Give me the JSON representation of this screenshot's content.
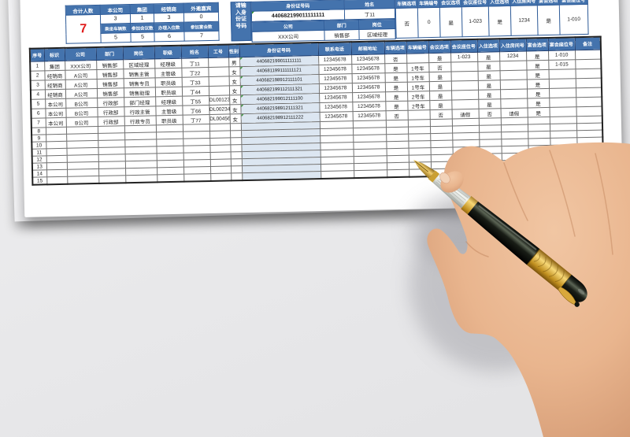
{
  "summary": {
    "row1_headers": [
      "合计人数",
      "本公司",
      "集团",
      "经销商",
      "外邀嘉宾"
    ],
    "row1_values": [
      "3",
      "1",
      "3",
      "0"
    ],
    "total": "7",
    "row2_headers": [
      "乘坐车辆数",
      "参加会议数",
      "办理入住数",
      "参加宴会数"
    ],
    "row2_values": [
      "5",
      "5",
      "6",
      "7"
    ]
  },
  "lookup": {
    "side_label": "请输入身份证号码",
    "id_header": "身份证号码",
    "id_value": "440682199011111111",
    "name_header": "姓名",
    "name_value": "丁11",
    "company_header": "公司",
    "company_value": "XXX公司",
    "dept_header": "部门",
    "dept_value": "销售部",
    "post_header": "岗位",
    "post_value": "区域经理",
    "result_columns": [
      {
        "header": "车辆选项",
        "value": "否"
      },
      {
        "header": "车辆编号",
        "value": "0"
      },
      {
        "header": "会议选项",
        "value": "是"
      },
      {
        "header": "会议座位号",
        "value": "1-023"
      },
      {
        "header": "入住选项",
        "value": "是"
      },
      {
        "header": "入住房间号",
        "value": "1234"
      },
      {
        "header": "宴会选项",
        "value": "是"
      },
      {
        "header": "宴会座位号",
        "value": "1-010"
      }
    ]
  },
  "main_table": {
    "columns": [
      "序号",
      "标识",
      "公司",
      "部门",
      "岗位",
      "职级",
      "姓名",
      "工号",
      "性别",
      "身份证号码",
      "联系电话",
      "邮箱地址",
      "车辆选项",
      "车辆编号",
      "会议选项",
      "会议座位号",
      "入住选项",
      "入住房间号",
      "宴会选项",
      "宴会座位号",
      "备注"
    ],
    "rows": [
      [
        "1",
        "集团",
        "XXX公司",
        "销售部",
        "区域经理",
        "经理级",
        "丁11",
        "",
        "男",
        "440682199011111111",
        "12345678",
        "12345678",
        "否",
        "",
        "是",
        "1-023",
        "是",
        "1234",
        "是",
        "1-010",
        ""
      ],
      [
        "2",
        "经销商",
        "A公司",
        "销售部",
        "销售主管",
        "主管级",
        "丁22",
        "",
        "女",
        "440681199111111121",
        "12345678",
        "12345678",
        "是",
        "1号车",
        "否",
        "",
        "是",
        "",
        "是",
        "1-015",
        ""
      ],
      [
        "3",
        "经销商",
        "A公司",
        "销售部",
        "销售专员",
        "职员级",
        "丁33",
        "",
        "女",
        "440682198912111101",
        "12345678",
        "12345678",
        "是",
        "1号车",
        "是",
        "",
        "是",
        "",
        "是",
        "",
        ""
      ],
      [
        "4",
        "经销商",
        "A公司",
        "销售部",
        "销售助理",
        "职员级",
        "丁44",
        "",
        "女",
        "440682199112111321",
        "12345678",
        "12345678",
        "是",
        "1号车",
        "是",
        "",
        "是",
        "",
        "是",
        "",
        ""
      ],
      [
        "5",
        "本公司",
        "B公司",
        "行政部",
        "部门经理",
        "经理级",
        "丁55",
        "DL00123",
        "女",
        "440682199012111100",
        "12345678",
        "12345678",
        "是",
        "2号车",
        "是",
        "",
        "是",
        "",
        "是",
        "",
        ""
      ],
      [
        "6",
        "本公司",
        "B公司",
        "行政部",
        "行政主管",
        "主管级",
        "丁66",
        "DL00234",
        "女",
        "440682198912111321",
        "12345678",
        "12345678",
        "是",
        "2号车",
        "是",
        "",
        "是",
        "",
        "是",
        "",
        ""
      ],
      [
        "7",
        "本公司",
        "B公司",
        "行政部",
        "行政专员",
        "职员级",
        "丁77",
        "DL00456",
        "女",
        "440682198912111222",
        "12345678",
        "12345678",
        "否",
        "",
        "否",
        "请假",
        "否",
        "请假",
        "是",
        "",
        ""
      ]
    ],
    "empty_row_numbers": [
      "8",
      "9",
      "10",
      "11",
      "12",
      "13",
      "14",
      "15"
    ]
  },
  "colors": {
    "header_blue": "#4473ad",
    "id_column_blue": "#dce6f1",
    "total_red": "#e01b1b"
  }
}
